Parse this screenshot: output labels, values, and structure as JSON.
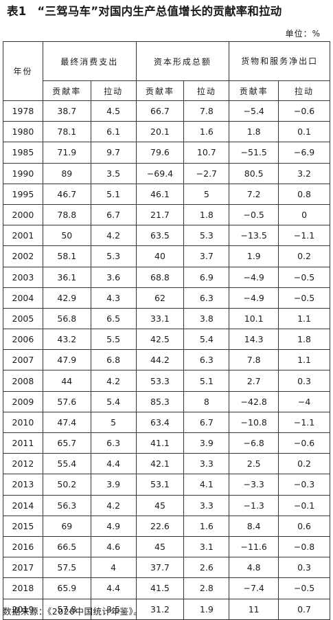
{
  "title": {
    "label": "表1",
    "text": "“三驾马车”对国内生产总值增长的贡献率和拉动"
  },
  "unit": "单位：%",
  "headers": {
    "year": "年份",
    "groups": [
      "最终消费支出",
      "资本形成总额",
      "货物和服务净出口"
    ],
    "sub": [
      "贡献率",
      "拉动",
      "贡献率",
      "拉动",
      "贡献率",
      "拉动"
    ]
  },
  "rows": [
    [
      "1978",
      "38.7",
      "4.5",
      "66.7",
      "7.8",
      "−5.4",
      "−0.6"
    ],
    [
      "1980",
      "78.1",
      "6.1",
      "20.1",
      "1.6",
      "1.8",
      "0.1"
    ],
    [
      "1985",
      "71.9",
      "9.7",
      "79.6",
      "10.7",
      "−51.5",
      "−6.9"
    ],
    [
      "1990",
      "89",
      "3.5",
      "−69.4",
      "−2.7",
      "80.5",
      "3.2"
    ],
    [
      "1995",
      "46.7",
      "5.1",
      "46.1",
      "5",
      "7.2",
      "0.8"
    ],
    [
      "2000",
      "78.8",
      "6.7",
      "21.7",
      "1.8",
      "−0.5",
      "0"
    ],
    [
      "2001",
      "50",
      "4.2",
      "63.5",
      "5.3",
      "−13.5",
      "−1.1"
    ],
    [
      "2002",
      "58.1",
      "5.3",
      "40",
      "3.7",
      "1.9",
      "0.2"
    ],
    [
      "2003",
      "36.1",
      "3.6",
      "68.8",
      "6.9",
      "−4.9",
      "−0.5"
    ],
    [
      "2004",
      "42.9",
      "4.3",
      "62",
      "6.3",
      "−4.9",
      "−0.5"
    ],
    [
      "2005",
      "56.8",
      "6.5",
      "33.1",
      "3.8",
      "10.1",
      "1.1"
    ],
    [
      "2006",
      "43.2",
      "5.5",
      "42.5",
      "5.4",
      "14.3",
      "1.8"
    ],
    [
      "2007",
      "47.9",
      "6.8",
      "44.2",
      "6.3",
      "7.8",
      "1.1"
    ],
    [
      "2008",
      "44",
      "4.2",
      "53.3",
      "5.1",
      "2.7",
      "0.3"
    ],
    [
      "2009",
      "57.6",
      "5.4",
      "85.3",
      "8",
      "−42.8",
      "−4"
    ],
    [
      "2010",
      "47.4",
      "5",
      "63.4",
      "6.7",
      "−10.8",
      "−1.1"
    ],
    [
      "2011",
      "65.7",
      "6.3",
      "41.1",
      "3.9",
      "−6.8",
      "−0.6"
    ],
    [
      "2012",
      "55.4",
      "4.4",
      "42.1",
      "3.3",
      "2.5",
      "0.2"
    ],
    [
      "2013",
      "50.2",
      "3.9",
      "53.1",
      "4.1",
      "−3.3",
      "−0.3"
    ],
    [
      "2014",
      "56.3",
      "4.2",
      "45",
      "3.3",
      "−1.3",
      "−0.1"
    ],
    [
      "2015",
      "69",
      "4.9",
      "22.6",
      "1.6",
      "8.4",
      "0.6"
    ],
    [
      "2016",
      "66.5",
      "4.6",
      "45",
      "3.1",
      "−11.6",
      "−0.8"
    ],
    [
      "2017",
      "57.5",
      "4",
      "37.7",
      "2.6",
      "4.8",
      "0.3"
    ],
    [
      "2018",
      "65.9",
      "4.4",
      "41.5",
      "2.8",
      "−7.4",
      "−0.5"
    ],
    [
      "2019",
      "57.8",
      "3.5",
      "31.2",
      "1.9",
      "11",
      "0.7"
    ]
  ],
  "source": "数据来源：《2020中国统计年鉴》。"
}
